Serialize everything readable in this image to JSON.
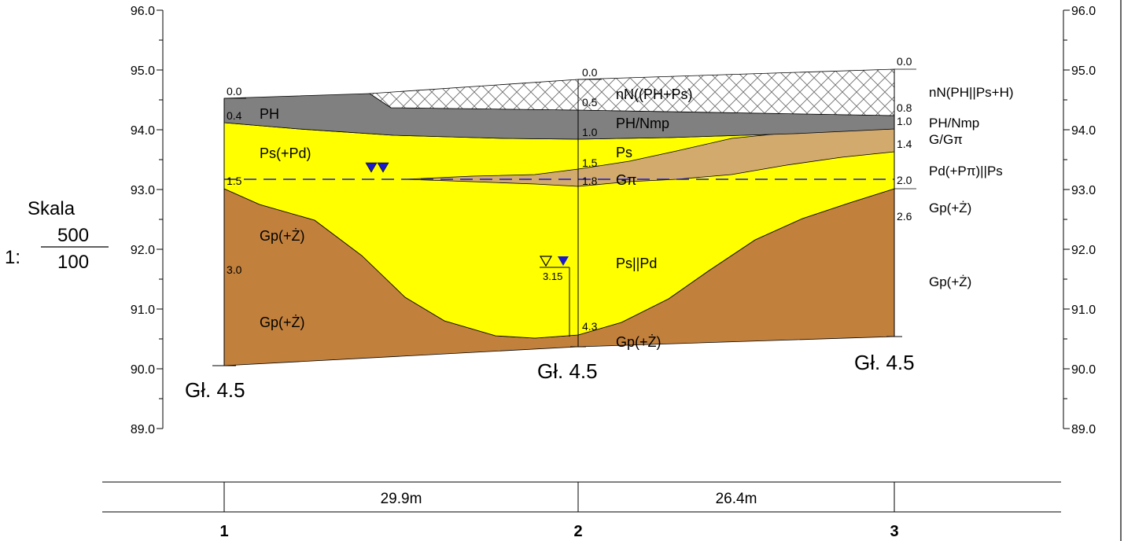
{
  "colors": {
    "topsoil": "#808080",
    "sand": "#ffff00",
    "brown": "#c2803d",
    "tan": "#d2aa6d",
    "water_line": "#1a1acc",
    "water_marker": "#1a1acc"
  },
  "axis": {
    "ticks": [
      "96.0",
      "95.0",
      "94.0",
      "93.0",
      "92.0",
      "91.0",
      "90.0",
      "89.0"
    ]
  },
  "scale": {
    "label": "Skala",
    "prefix": "1:",
    "numerator": "500",
    "denominator": "100"
  },
  "boreholes": [
    {
      "number": "1",
      "depth_label": "Gł. 4.5",
      "depths": [
        "0.0",
        "0.4",
        "1.5",
        "3.0"
      ]
    },
    {
      "number": "2",
      "depth_label": "Gł. 4.5",
      "depths": [
        "0.0",
        "0.5",
        "1.0",
        "1.5",
        "1.8",
        "4.3"
      ],
      "water_depth": "3.15"
    },
    {
      "number": "3",
      "depth_label": "Gł. 4.5",
      "depths": [
        "0.0",
        "0.8",
        "1.0",
        "1.4",
        "2.0",
        "2.6"
      ]
    }
  ],
  "layers": {
    "b1": [
      "PH",
      "Ps(+Pd)",
      "Gp(+Ż)",
      "Gp(+Ż)"
    ],
    "b2": [
      "nN((PH+Ps)",
      "PH/Nmp",
      "Ps",
      "Gπ",
      "Ps||Pd",
      "Gp(+Ż)"
    ],
    "b3": [
      "nN(PH||Ps+H)",
      "PH/Nmp",
      "G/Gπ",
      "Pd(+Pπ)||Ps",
      "Gp(+Ż)",
      "Gp(+Ż)"
    ]
  },
  "distances": [
    "29.9m",
    "26.4m"
  ]
}
